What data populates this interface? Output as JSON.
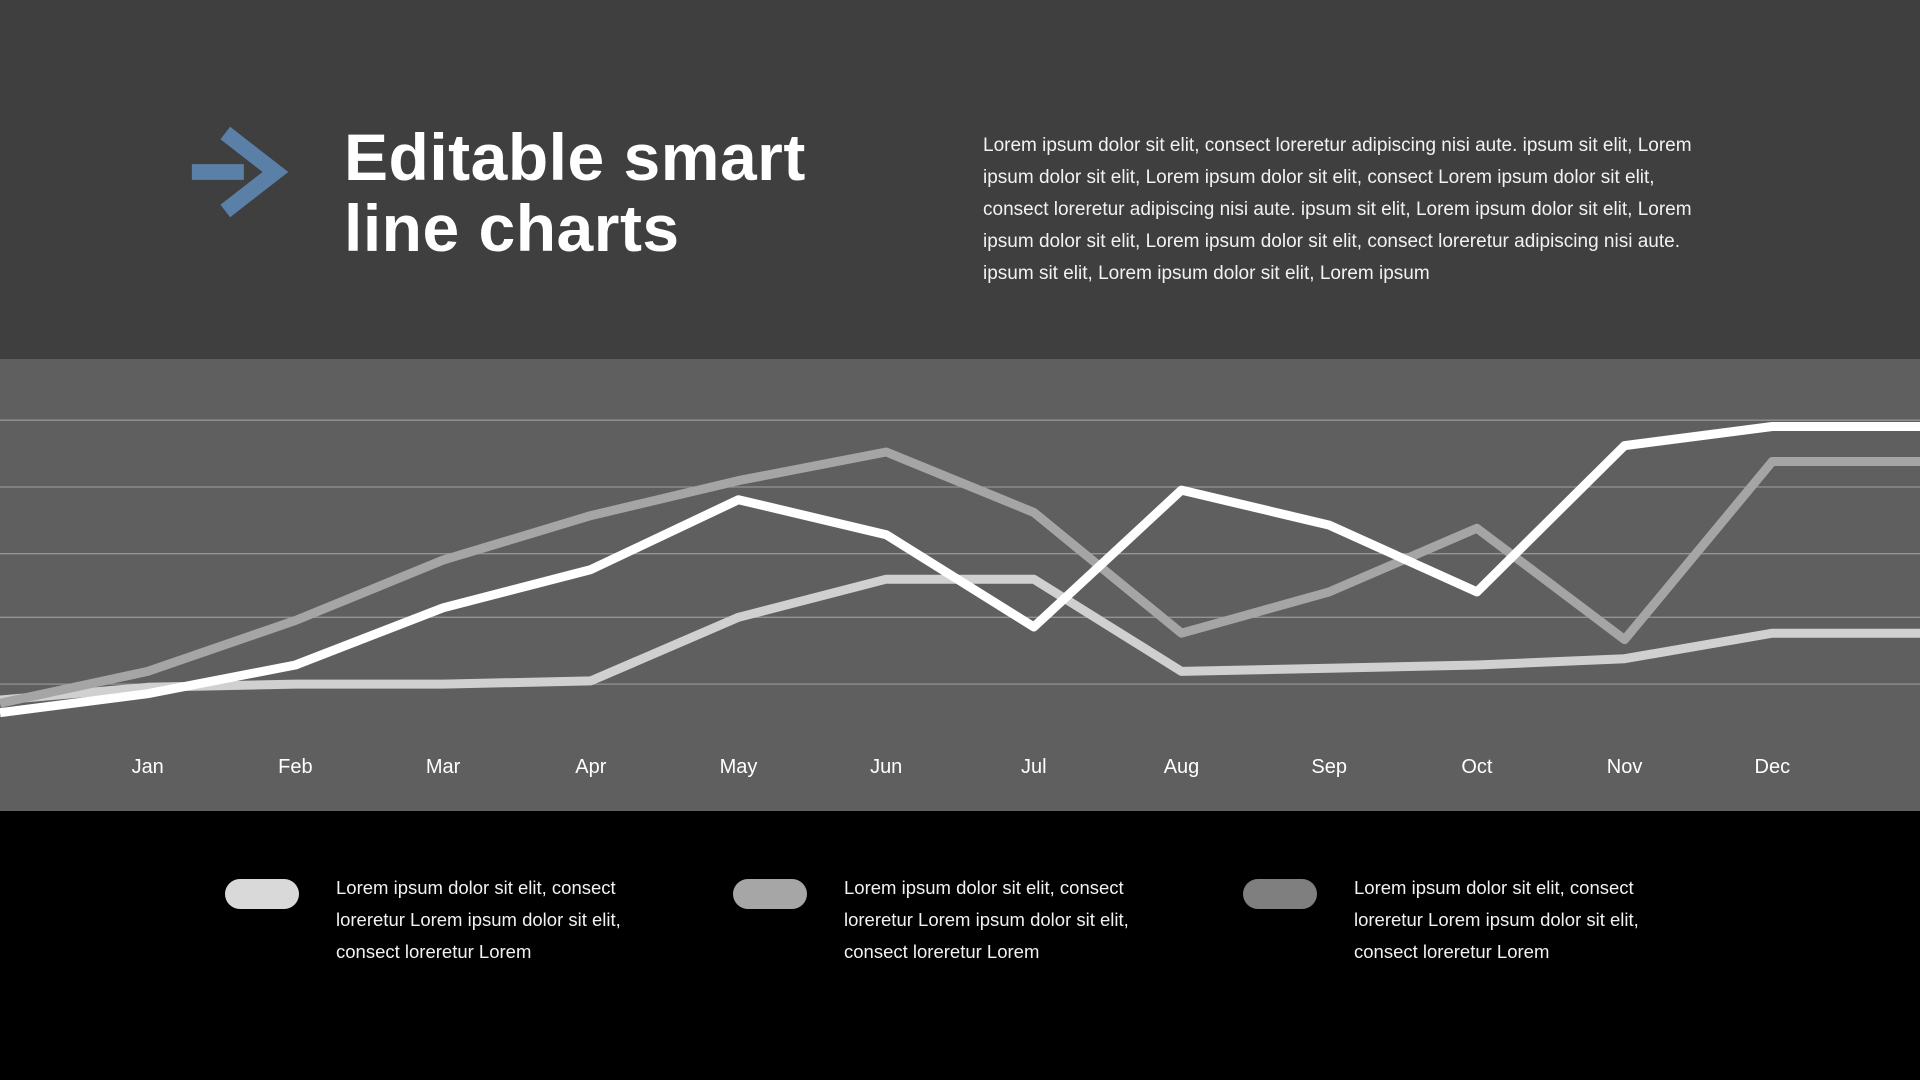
{
  "slide": {
    "title": "Editable smart line charts",
    "intro_paragraph": "Lorem ipsum dolor sit elit, consect loreretur adipiscing nisi aute. ipsum sit elit, Lorem ipsum dolor sit elit, Lorem ipsum dolor sit elit, consect Lorem ipsum dolor sit elit, consect loreretur adipiscing nisi aute. ipsum sit elit, Lorem ipsum dolor sit elit, Lorem ipsum dolor sit elit, Lorem ipsum dolor sit elit, consect loreretur adipiscing nisi aute. ipsum sit elit, Lorem ipsum dolor sit elit, Lorem ipsum"
  },
  "colors": {
    "header_bg": "#3f3f3f",
    "chart_bg": "#5f5f5f",
    "footer_bg": "#000000",
    "gridline": "#949494",
    "accent_arrow": "#5b80a8",
    "title_text": "#ffffff"
  },
  "chart_data": {
    "type": "line",
    "title": "",
    "xlabel": "",
    "ylabel": "",
    "categories": [
      "Jan",
      "Feb",
      "Mar",
      "Apr",
      "May",
      "Jun",
      "Jul",
      "Aug",
      "Sep",
      "Oct",
      "Nov",
      "Dec"
    ],
    "layout_note": "Each series has 14 points: the first and last points extend the line to the left and right slide edges beyond Jan and Dec.",
    "series": [
      {
        "name": "series-light-gray",
        "color": "#d0d0d0",
        "values": [
          11,
          15,
          16,
          16,
          17,
          37,
          49,
          49,
          20,
          21,
          22,
          24,
          32,
          32
        ]
      },
      {
        "name": "series-medium-gray",
        "color": "#a5a5a5",
        "values": [
          10,
          20,
          36,
          55,
          69,
          80,
          89,
          70,
          32,
          45,
          65,
          30,
          86,
          86
        ]
      },
      {
        "name": "series-white",
        "color": "#ffffff",
        "values": [
          7,
          13,
          22,
          40,
          52,
          74,
          63,
          34,
          77,
          66,
          45,
          91,
          97,
          97
        ]
      }
    ],
    "ylim": [
      0,
      105
    ],
    "grid": true,
    "gridlines": [
      16,
      37,
      57,
      78,
      99
    ],
    "legend_position": "bottom"
  },
  "legend": {
    "items": [
      {
        "color": "#d9d9d9",
        "text": "Lorem ipsum dolor sit elit, consect loreretur Lorem ipsum dolor sit elit, consect loreretur Lorem"
      },
      {
        "color": "#a6a6a6",
        "text": "Lorem ipsum dolor sit elit, consect loreretur Lorem ipsum dolor sit elit, consect loreretur Lorem"
      },
      {
        "color": "#7f7f7f",
        "text": "Lorem ipsum dolor sit elit, consect loreretur Lorem ipsum dolor sit elit, consect loreretur Lorem"
      }
    ]
  }
}
